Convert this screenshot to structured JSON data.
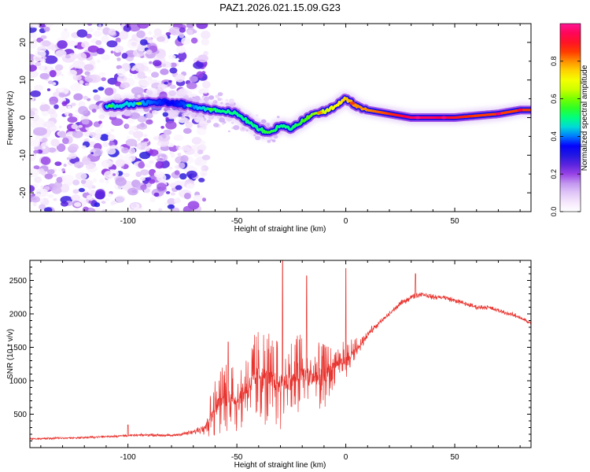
{
  "figure": {
    "title": "PAZ1.2026.021.15.09.G23"
  },
  "colors": {
    "snr_line": "#e8342f",
    "axis": "#000000",
    "background": "#ffffff"
  },
  "colorbar": {
    "label": "Normalized spectral amplitude",
    "range": [
      0,
      1
    ],
    "ticks": [
      0.0,
      0.2,
      0.4,
      0.6,
      0.8
    ],
    "tick_labels": [
      "0.0",
      "0.2",
      "0.4",
      "0.6",
      "0.8"
    ],
    "colormap": [
      "#ffffff",
      "#f0ddfb",
      "#c9a3f2",
      "#8a2be2",
      "#2b1ddb",
      "#0000ff",
      "#00c8ff",
      "#00ff80",
      "#40ff00",
      "#c8ff00",
      "#ffff00",
      "#ffa500",
      "#ff3000",
      "#ff0040",
      "#ff1493"
    ]
  },
  "chart_data": [
    {
      "id": "spectrogram",
      "type": "heatmap",
      "title": "PAZ1.2026.021.15.09.G23",
      "xlabel": "Height of straight line (km)",
      "ylabel": "Frequency (Hz)",
      "xlim": [
        -145,
        85
      ],
      "ylim": [
        -25,
        25
      ],
      "xticks": [
        -100,
        -50,
        0,
        50
      ],
      "xtick_labels": [
        "-100",
        "-50",
        "0",
        "50"
      ],
      "yticks": [
        -20,
        -10,
        0,
        10,
        20
      ],
      "ytick_labels": [
        "-20",
        "-10",
        "0",
        "10",
        "20"
      ],
      "grid": false,
      "ridge_description": "dominant frequency ridge vs height",
      "ridge": {
        "x": [
          -110,
          -100,
          -90,
          -80,
          -70,
          -60,
          -50,
          -40,
          -35,
          -30,
          -25,
          -20,
          -15,
          -10,
          -5,
          0,
          5,
          10,
          20,
          30,
          40,
          50,
          60,
          70,
          80,
          85
        ],
        "freq": [
          3,
          3.5,
          4,
          4,
          3,
          2,
          1,
          -3,
          -4,
          -2,
          -3,
          -1,
          1,
          1.5,
          3,
          5,
          3,
          2,
          1,
          0,
          0,
          0,
          0.5,
          1,
          2,
          2
        ],
        "amplitude": [
          0.45,
          0.45,
          0.4,
          0.35,
          0.4,
          0.5,
          0.5,
          0.5,
          0.55,
          0.5,
          0.5,
          0.55,
          0.6,
          0.65,
          0.7,
          0.75,
          0.8,
          0.8,
          0.85,
          0.95,
          0.95,
          0.9,
          0.85,
          0.85,
          0.85,
          0.85
        ]
      },
      "noise_region_x": [
        -145,
        -70
      ],
      "noise_amplitude_range": [
        0.02,
        0.3
      ]
    },
    {
      "id": "snr",
      "type": "line",
      "title": "",
      "xlabel": "Height of straight line (km)",
      "ylabel": "SNR (10 * v/v)",
      "xlim": [
        -145,
        85
      ],
      "ylim": [
        0,
        2800
      ],
      "xticks": [
        -100,
        -50,
        0,
        50
      ],
      "xtick_labels": [
        "-100",
        "-50",
        "0",
        "50"
      ],
      "yticks": [
        500,
        1000,
        1500,
        2000,
        2500
      ],
      "ytick_labels": [
        "500",
        "1000",
        "1500",
        "2000",
        "2500"
      ],
      "grid": false,
      "envelope": {
        "x": [
          -145,
          -120,
          -100,
          -90,
          -80,
          -70,
          -65,
          -60,
          -55,
          -50,
          -45,
          -40,
          -35,
          -30,
          -25,
          -20,
          -15,
          -10,
          -5,
          0,
          5,
          10,
          15,
          20,
          25,
          30,
          35,
          40,
          45,
          50,
          55,
          60,
          65,
          70,
          75,
          80,
          85
        ],
        "mean": [
          130,
          150,
          180,
          190,
          180,
          230,
          300,
          600,
          800,
          700,
          900,
          1100,
          1000,
          950,
          1000,
          1100,
          1050,
          1050,
          1250,
          1300,
          1450,
          1700,
          1850,
          2000,
          2150,
          2250,
          2300,
          2250,
          2250,
          2200,
          2150,
          2100,
          2100,
          2050,
          2000,
          1950,
          1850
        ],
        "spread": [
          40,
          40,
          40,
          50,
          45,
          90,
          200,
          450,
          550,
          500,
          650,
          700,
          750,
          700,
          650,
          650,
          550,
          500,
          300,
          300,
          200,
          150,
          100,
          100,
          100,
          100,
          90,
          90,
          90,
          90,
          90,
          85,
          85,
          80,
          80,
          80,
          80
        ]
      },
      "spikes": [
        {
          "x": -100,
          "y": 340
        },
        {
          "x": -54,
          "y": 1580
        },
        {
          "x": -29,
          "y": 2800
        },
        {
          "x": -18,
          "y": 2570
        },
        {
          "x": 0,
          "y": 2680
        },
        {
          "x": 32,
          "y": 2600
        }
      ]
    }
  ]
}
